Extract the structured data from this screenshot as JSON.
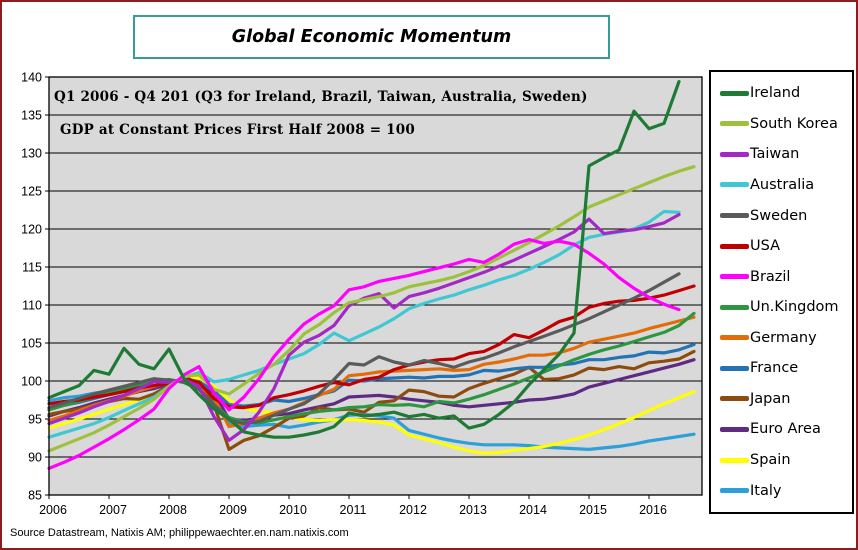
{
  "title": "Global Economic Momentum",
  "source": "Source Datastream, Natixis AM; philippewaechter.en.nam.natixis.com",
  "colors": {
    "frame_border": "#8B1D1D",
    "title_border": "#379B9B",
    "legend_border": "#000000",
    "plot_bg": "#D9D9D9",
    "gridline": "#000000"
  },
  "chart_data": {
    "type": "line",
    "title": "Global Economic Momentum",
    "note_line1": "Q1 2006 - Q4 201 (Q3 for Ireland, Brazil, Taiwan, Australia, Sweden)",
    "note_line2": "GDP at Constant Prices First Half 2008 = 100",
    "x_frequency": "quarterly",
    "x_range": "2006Q1 - 2016Q4",
    "x_tick_labels": [
      "2006",
      "2007",
      "2008",
      "2009",
      "2010",
      "2011",
      "2012",
      "2013",
      "2014",
      "2015",
      "2016"
    ],
    "ylim": [
      85,
      140
    ],
    "y_ticks": [
      85,
      90,
      95,
      100,
      105,
      110,
      115,
      120,
      125,
      130,
      135,
      140
    ],
    "grid": "horizontal",
    "legend_position": "right",
    "plot_bg": "#D9D9D9",
    "z_order": [
      "Italy",
      "Spain",
      "Euro Area",
      "Japan",
      "France",
      "Germany",
      "Un.Kingdom",
      "USA",
      "Sweden",
      "Australia",
      "Taiwan",
      "South Korea",
      "Brazil",
      "Ireland"
    ],
    "series": [
      {
        "name": "Ireland",
        "color": "#1E7B34",
        "last_point": "2016Q3",
        "values": [
          97.8,
          98.6,
          99.4,
          101.4,
          100.9,
          104.3,
          102.2,
          101.6,
          104.2,
          100.3,
          98.2,
          96.3,
          95.0,
          93.3,
          92.9,
          92.6,
          92.6,
          92.9,
          93.3,
          94.0,
          95.8,
          95.4,
          95.6,
          95.9,
          95.3,
          95.6,
          95.1,
          95.4,
          93.8,
          94.3,
          95.6,
          97.2,
          99.5,
          101.5,
          103.5,
          106.3,
          128.3,
          129.4,
          130.4,
          135.5,
          133.2,
          133.9,
          139.4
        ]
      },
      {
        "name": "South Korea",
        "color": "#9DC13C",
        "last_point": "2016Q4",
        "values": [
          90.8,
          91.6,
          92.4,
          93.2,
          94.2,
          95.3,
          96.4,
          97.6,
          99.3,
          100.6,
          100.8,
          98.9,
          98.3,
          99.6,
          101.0,
          102.2,
          104.0,
          106.2,
          107.4,
          109.0,
          110.3,
          110.7,
          111.1,
          111.6,
          112.4,
          112.8,
          113.2,
          113.7,
          114.4,
          115.2,
          116.2,
          117.2,
          118.2,
          119.3,
          120.4,
          121.6,
          122.9,
          123.7,
          124.5,
          125.3,
          126.1,
          126.9,
          127.6,
          128.2
        ]
      },
      {
        "name": "Taiwan",
        "color": "#A328C6",
        "last_point": "2016Q3",
        "values": [
          94.4,
          95.1,
          95.8,
          96.6,
          97.3,
          98.1,
          99.0,
          99.9,
          99.8,
          100.2,
          99.3,
          95.3,
          92.2,
          93.6,
          95.9,
          99.0,
          103.4,
          105.1,
          106.0,
          107.3,
          109.9,
          110.9,
          111.5,
          109.6,
          111.1,
          111.6,
          112.2,
          112.9,
          113.6,
          114.3,
          115.1,
          115.9,
          116.8,
          117.7,
          118.6,
          119.6,
          121.3,
          119.4,
          119.7,
          119.9,
          120.3,
          120.8,
          121.9
        ]
      },
      {
        "name": "Australia",
        "color": "#3FC8D4",
        "last_point": "2016Q3",
        "values": [
          92.6,
          93.2,
          93.8,
          94.4,
          95.2,
          96.1,
          97.0,
          97.9,
          99.3,
          100.5,
          101.1,
          99.9,
          100.2,
          100.8,
          101.4,
          102.2,
          102.9,
          103.6,
          104.8,
          106.3,
          105.3,
          106.2,
          107.1,
          108.2,
          109.5,
          110.2,
          110.8,
          111.3,
          112.0,
          112.6,
          113.3,
          113.9,
          114.7,
          115.6,
          116.6,
          117.9,
          118.9,
          119.3,
          119.6,
          120.0,
          120.9,
          122.3,
          122.2
        ]
      },
      {
        "name": "Sweden",
        "color": "#5B5B5B",
        "last_point": "2016Q3",
        "values": [
          96.5,
          97.1,
          97.7,
          98.3,
          98.8,
          99.3,
          99.8,
          100.3,
          100.1,
          99.9,
          98.9,
          96.8,
          94.9,
          94.4,
          94.7,
          95.5,
          96.3,
          97.0,
          98.3,
          100.2,
          102.3,
          102.1,
          103.2,
          102.5,
          102.1,
          102.7,
          102.3,
          101.8,
          102.5,
          103.0,
          103.7,
          104.5,
          105.2,
          105.9,
          106.6,
          107.4,
          108.2,
          109.1,
          110.0,
          110.9,
          111.9,
          113.0,
          114.1
        ]
      },
      {
        "name": "USA",
        "color": "#C00000",
        "last_point": "2016Q4",
        "values": [
          97.0,
          97.3,
          97.5,
          97.9,
          98.2,
          98.6,
          99.1,
          99.4,
          99.7,
          100.3,
          99.8,
          97.7,
          96.6,
          96.5,
          96.8,
          97.8,
          98.2,
          98.7,
          99.3,
          99.8,
          99.5,
          100.2,
          100.5,
          101.5,
          102.1,
          102.5,
          102.8,
          102.9,
          103.6,
          103.9,
          104.8,
          106.1,
          105.7,
          106.7,
          107.8,
          108.4,
          109.7,
          110.2,
          110.5,
          110.6,
          110.9,
          111.3,
          111.9,
          112.5
        ]
      },
      {
        "name": "Brazil",
        "color": "#FF00FF",
        "last_point": "2016Q3",
        "values": [
          88.5,
          89.3,
          90.2,
          91.3,
          92.4,
          93.6,
          94.9,
          96.3,
          99.0,
          100.8,
          101.9,
          98.4,
          96.2,
          97.9,
          100.3,
          103.2,
          105.5,
          107.5,
          108.8,
          109.9,
          112.0,
          112.4,
          113.1,
          113.5,
          113.9,
          114.4,
          114.9,
          115.4,
          116.0,
          115.6,
          116.7,
          118.0,
          118.6,
          118.1,
          118.4,
          118.0,
          116.8,
          115.4,
          113.6,
          112.2,
          111.0,
          110.1,
          109.4
        ]
      },
      {
        "name": "Un.Kingdom",
        "color": "#2D9640",
        "last_point": "2016Q4",
        "values": [
          96.2,
          96.8,
          97.3,
          97.9,
          98.4,
          99.0,
          99.5,
          100.0,
          100.2,
          99.8,
          98.9,
          96.9,
          95.2,
          94.6,
          94.5,
          94.9,
          95.3,
          95.7,
          96.0,
          96.2,
          96.5,
          96.6,
          96.9,
          96.8,
          96.9,
          96.6,
          97.3,
          97.1,
          97.6,
          98.2,
          98.9,
          99.6,
          100.4,
          101.2,
          102.0,
          102.8,
          103.5,
          104.1,
          104.6,
          105.2,
          105.8,
          106.4,
          107.3,
          108.9
        ]
      },
      {
        "name": "Germany",
        "color": "#E36C0A",
        "last_point": "2016Q4",
        "values": [
          94.8,
          95.4,
          96.1,
          96.8,
          97.4,
          98.0,
          98.7,
          99.3,
          99.9,
          100.1,
          99.4,
          97.8,
          94.0,
          94.4,
          95.1,
          95.8,
          96.3,
          97.2,
          98.1,
          98.9,
          100.7,
          100.9,
          101.2,
          101.3,
          101.4,
          101.5,
          101.6,
          101.4,
          101.5,
          102.2,
          102.5,
          102.9,
          103.4,
          103.4,
          103.7,
          104.3,
          105.1,
          105.5,
          105.9,
          106.3,
          106.9,
          107.4,
          107.9,
          108.4
        ]
      },
      {
        "name": "France",
        "color": "#2373B5",
        "last_point": "2016Q4",
        "values": [
          96.3,
          96.8,
          97.2,
          97.7,
          98.2,
          98.6,
          99.0,
          99.3,
          99.8,
          100.2,
          99.9,
          98.7,
          96.9,
          96.7,
          96.9,
          97.5,
          97.3,
          97.7,
          98.2,
          98.7,
          100.1,
          100.0,
          100.3,
          100.4,
          100.5,
          100.4,
          100.6,
          100.6,
          100.8,
          101.4,
          101.3,
          101.6,
          101.8,
          101.8,
          102.1,
          102.3,
          102.8,
          102.8,
          103.1,
          103.3,
          103.8,
          103.7,
          104.1,
          104.8
        ]
      },
      {
        "name": "Japan",
        "color": "#8E4B10",
        "last_point": "2016Q4",
        "values": [
          95.6,
          96.0,
          96.3,
          96.9,
          97.3,
          97.7,
          97.6,
          98.3,
          99.4,
          100.6,
          99.6,
          96.9,
          91.0,
          92.2,
          92.8,
          93.9,
          95.1,
          95.4,
          96.5,
          96.2,
          96.3,
          95.9,
          97.2,
          97.4,
          98.8,
          98.6,
          98.0,
          97.9,
          99.0,
          99.7,
          100.3,
          100.9,
          101.8,
          100.2,
          100.3,
          100.8,
          101.7,
          101.5,
          101.9,
          101.6,
          102.4,
          102.6,
          102.9,
          103.9
        ]
      },
      {
        "name": "Euro Area",
        "color": "#5E2A84",
        "last_point": "2016Q4",
        "values": [
          95.4,
          96.0,
          96.5,
          97.1,
          97.6,
          98.1,
          98.6,
          99.0,
          99.6,
          100.3,
          99.9,
          98.4,
          95.0,
          94.8,
          95.1,
          95.5,
          95.7,
          96.2,
          96.6,
          97.0,
          97.9,
          98.0,
          98.1,
          97.9,
          97.6,
          97.4,
          97.2,
          96.8,
          96.6,
          96.8,
          97.0,
          97.2,
          97.5,
          97.6,
          97.9,
          98.3,
          99.2,
          99.7,
          100.2,
          100.7,
          101.2,
          101.7,
          102.2,
          102.8
        ]
      },
      {
        "name": "Spain",
        "color": "#FFFF00",
        "last_point": "2016Q4",
        "values": [
          93.8,
          94.4,
          95.0,
          95.6,
          96.3,
          96.9,
          97.5,
          98.1,
          99.4,
          100.5,
          100.4,
          99.3,
          97.5,
          96.4,
          96.0,
          95.8,
          95.3,
          94.9,
          94.8,
          94.9,
          94.9,
          94.8,
          94.6,
          94.2,
          92.9,
          92.4,
          91.9,
          91.3,
          90.8,
          90.5,
          90.6,
          90.9,
          91.1,
          91.4,
          91.8,
          92.3,
          92.9,
          93.6,
          94.4,
          95.2,
          96.1,
          97.0,
          97.8,
          98.6
        ]
      },
      {
        "name": "Italy",
        "color": "#2D9FD9",
        "last_point": "2016Q4",
        "values": [
          97.4,
          97.8,
          98.0,
          98.4,
          98.7,
          98.9,
          99.1,
          99.0,
          99.9,
          100.1,
          99.4,
          97.2,
          94.5,
          94.0,
          94.2,
          94.3,
          93.9,
          94.2,
          94.6,
          94.9,
          95.5,
          95.6,
          95.4,
          95.1,
          93.5,
          93.0,
          92.5,
          92.1,
          91.8,
          91.6,
          91.6,
          91.6,
          91.5,
          91.3,
          91.2,
          91.1,
          91.0,
          91.2,
          91.4,
          91.7,
          92.1,
          92.4,
          92.7,
          93.0
        ]
      }
    ]
  }
}
